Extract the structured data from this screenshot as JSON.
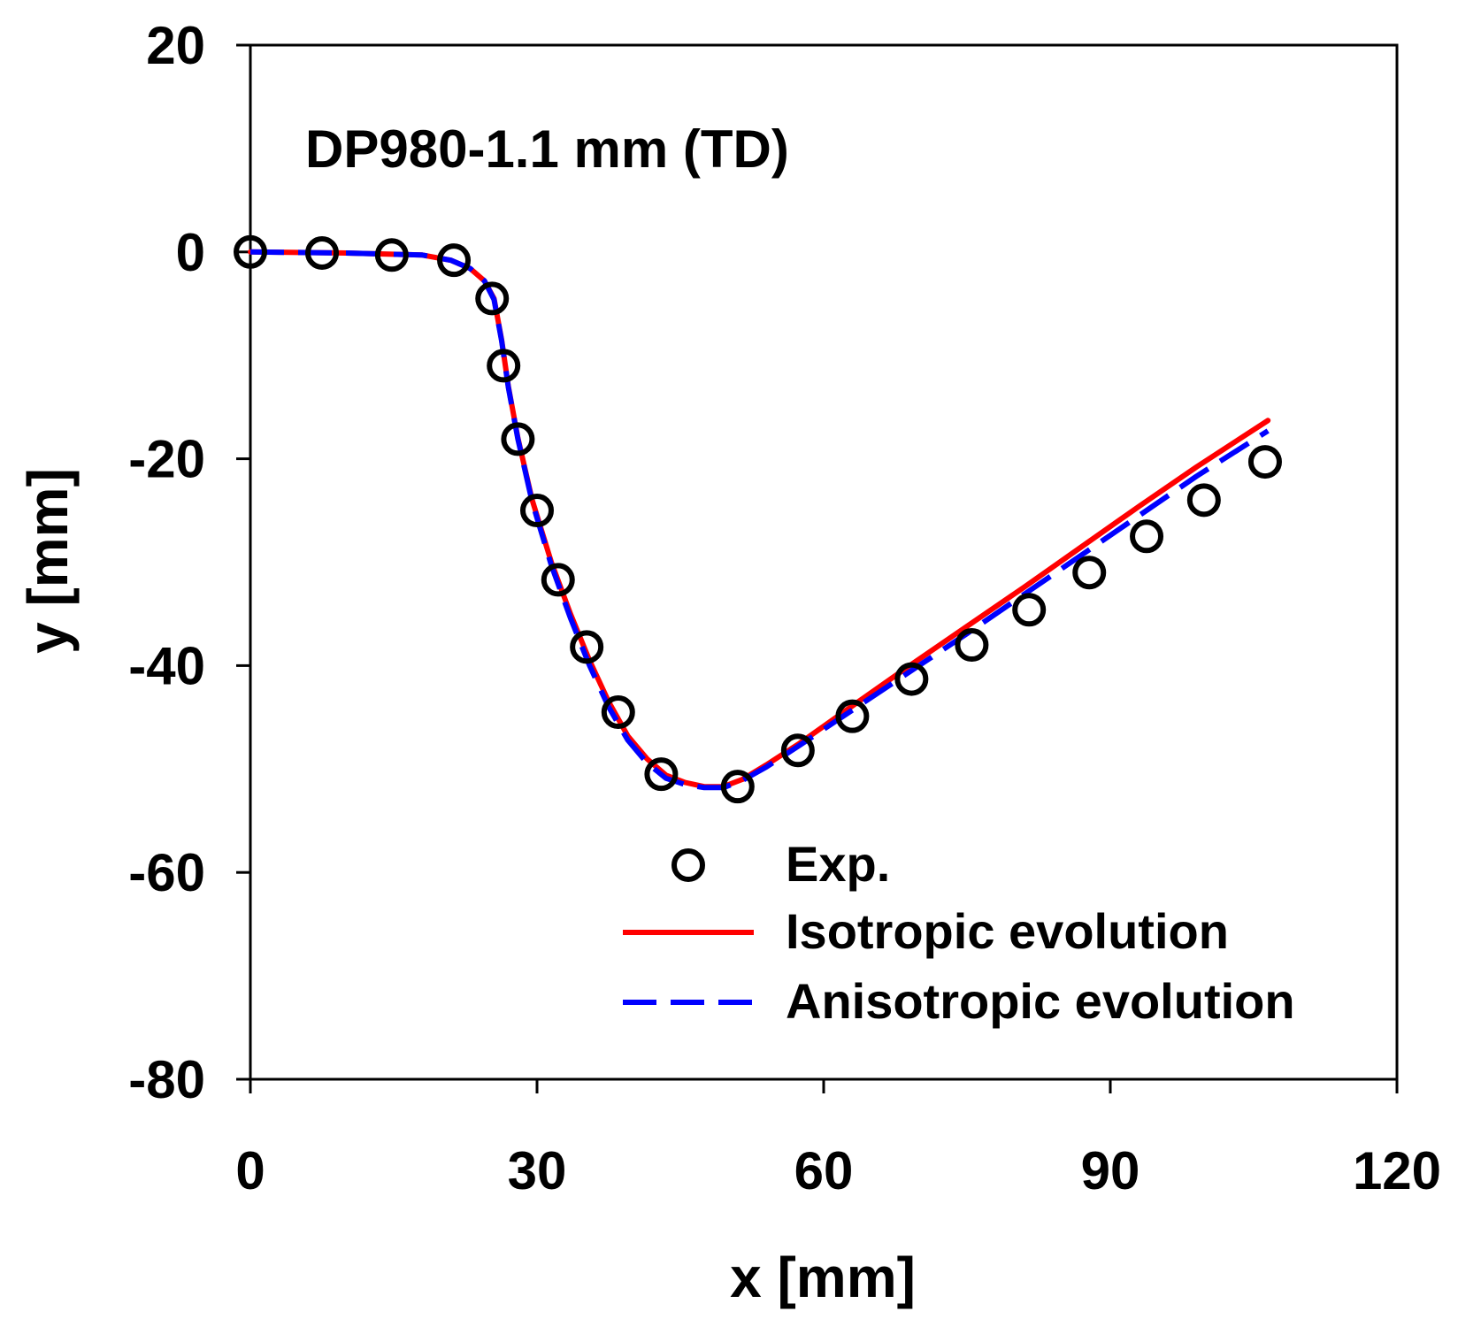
{
  "chart_data": {
    "type": "line",
    "title": "",
    "annotation": "DP980-1.1 mm (TD)",
    "xlabel": "x [mm]",
    "ylabel": "y [mm]",
    "xlim": [
      0,
      120
    ],
    "ylim": [
      -80,
      20
    ],
    "xticks": [
      0,
      30,
      60,
      90,
      120
    ],
    "yticks": [
      20,
      0,
      -20,
      -40,
      -60,
      -80
    ],
    "grid": false,
    "legend_position": "bottom-right",
    "series": [
      {
        "name": "Exp.",
        "style": "markers-open-circle",
        "color": "#000000",
        "x": [
          0,
          7.5,
          14.8,
          21.3,
          25.3,
          26.5,
          28.0,
          30.0,
          32.2,
          35.2,
          38.5,
          43.0,
          51.0,
          57.3,
          63.0,
          69.2,
          75.5,
          81.5,
          87.8,
          93.8,
          99.8,
          106.2
        ],
        "y": [
          0,
          -0.1,
          -0.3,
          -0.8,
          -4.5,
          -11.0,
          -18.1,
          -25.0,
          -31.7,
          -38.2,
          -44.5,
          -50.5,
          -51.7,
          -48.2,
          -44.9,
          -41.3,
          -38.0,
          -34.6,
          -31.0,
          -27.5,
          -24.0,
          -20.3
        ]
      },
      {
        "name": "Isotropic evolution",
        "style": "solid",
        "color": "#ff0000",
        "x": [
          0,
          10,
          18,
          21,
          23,
          24.5,
          25.5,
          26.3,
          27.0,
          28.0,
          29.5,
          31.5,
          33.5,
          35.5,
          37.5,
          39.5,
          41.5,
          43.5,
          45.5,
          47.5,
          49.5,
          51.5,
          54,
          57.5,
          63,
          69,
          75,
          81,
          87,
          93,
          99,
          106.5
        ],
        "y": [
          0,
          -0.1,
          -0.3,
          -0.8,
          -1.6,
          -2.8,
          -4.5,
          -8.5,
          -13.0,
          -18.0,
          -24.0,
          -30.0,
          -35.0,
          -39.5,
          -43.5,
          -46.8,
          -49.0,
          -50.6,
          -51.3,
          -51.7,
          -51.7,
          -51.0,
          -49.6,
          -47.5,
          -43.9,
          -40.0,
          -36.2,
          -32.4,
          -28.5,
          -24.6,
          -20.8,
          -16.3
        ]
      },
      {
        "name": "Anisotropic evolution",
        "style": "dashed",
        "color": "#0000ff",
        "x": [
          0,
          10,
          18,
          21,
          23,
          24.5,
          25.5,
          26.3,
          27.0,
          28.0,
          29.5,
          31.5,
          33.5,
          35.5,
          37.5,
          39.5,
          41.5,
          43.5,
          45.5,
          47.5,
          49.5,
          51.5,
          54,
          57.5,
          63,
          69,
          75,
          81,
          87,
          93,
          99,
          106.5
        ],
        "y": [
          0,
          -0.1,
          -0.3,
          -0.8,
          -1.6,
          -2.8,
          -4.6,
          -8.6,
          -13.1,
          -18.1,
          -24.2,
          -30.3,
          -35.4,
          -40.0,
          -44.0,
          -47.2,
          -49.4,
          -50.9,
          -51.5,
          -51.8,
          -51.8,
          -51.1,
          -49.8,
          -47.7,
          -44.3,
          -40.6,
          -36.9,
          -33.1,
          -29.3,
          -25.5,
          -21.7,
          -17.3
        ]
      }
    ]
  }
}
